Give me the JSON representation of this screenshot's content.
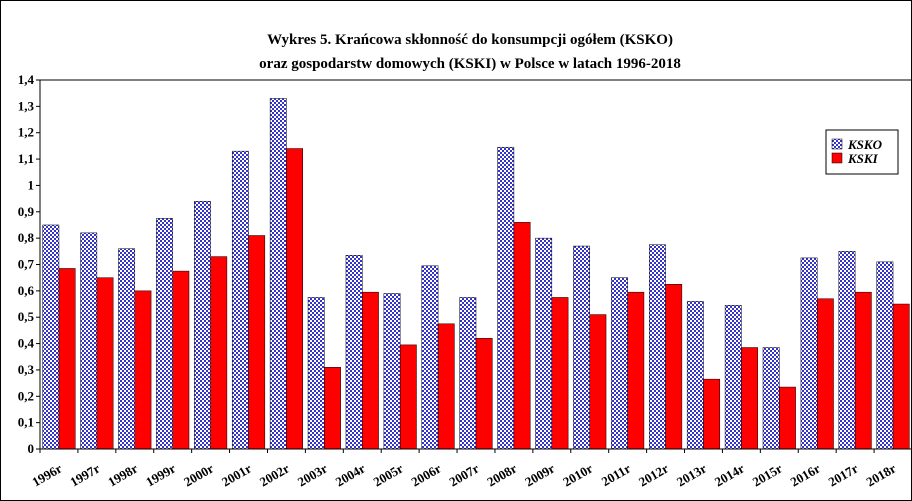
{
  "chart_data": {
    "type": "bar",
    "title": [
      "Wykres 5. Krańcowa skłonność do konsumpcji ogółem (KSKO)",
      "oraz gospodarstw domowych (KSKI) w Polsce w latach 1996-2018"
    ],
    "categories": [
      "1996r",
      "1997r",
      "1998r",
      "1999r",
      "2000r",
      "2001r",
      "2002r",
      "2003r",
      "2004r",
      "2005r",
      "2006r",
      "2007r",
      "2008r",
      "2009r",
      "2010r",
      "2011r",
      "2012r",
      "2013r",
      "2014r",
      "2015r",
      "2016r",
      "2017r",
      "2018r"
    ],
    "series": [
      {
        "name": "KSKO",
        "color": "#3333cc",
        "fill_pattern": "checkered",
        "values": [
          0.85,
          0.82,
          0.76,
          0.875,
          0.94,
          1.13,
          1.33,
          0.575,
          0.735,
          0.59,
          0.695,
          0.575,
          1.145,
          0.8,
          0.77,
          0.65,
          0.775,
          0.56,
          0.545,
          0.385,
          0.725,
          0.75,
          0.71
        ]
      },
      {
        "name": "KSKI",
        "color": "#ff0000",
        "values": [
          0.685,
          0.65,
          0.6,
          0.675,
          0.73,
          0.81,
          1.14,
          0.31,
          0.595,
          0.395,
          0.475,
          0.42,
          0.86,
          0.575,
          0.51,
          0.595,
          0.625,
          0.265,
          0.385,
          0.235,
          0.57,
          0.595,
          0.55
        ]
      }
    ],
    "ylim": [
      0,
      1.4
    ],
    "yticks": [
      0,
      {
        "value": 0.1,
        "label": "0,1"
      },
      {
        "value": 0.2,
        "label": "0,2"
      },
      {
        "value": 0.3,
        "label": "0,3"
      },
      {
        "value": 0.4,
        "label": "0,4"
      },
      {
        "value": 0.5,
        "label": "0,5"
      },
      {
        "value": 0.6,
        "label": "0,6"
      },
      {
        "value": 0.7,
        "label": "0,7"
      },
      {
        "value": 0.8,
        "label": "0,8"
      },
      {
        "value": 0.9,
        "label": "0,9"
      },
      1,
      {
        "value": 1.1,
        "label": "1,1"
      },
      {
        "value": 1.2,
        "label": "1,2"
      },
      {
        "value": 1.3,
        "label": "1,3"
      },
      {
        "value": 1.4,
        "label": "1,4"
      }
    ],
    "grid": false,
    "legend": "right"
  }
}
